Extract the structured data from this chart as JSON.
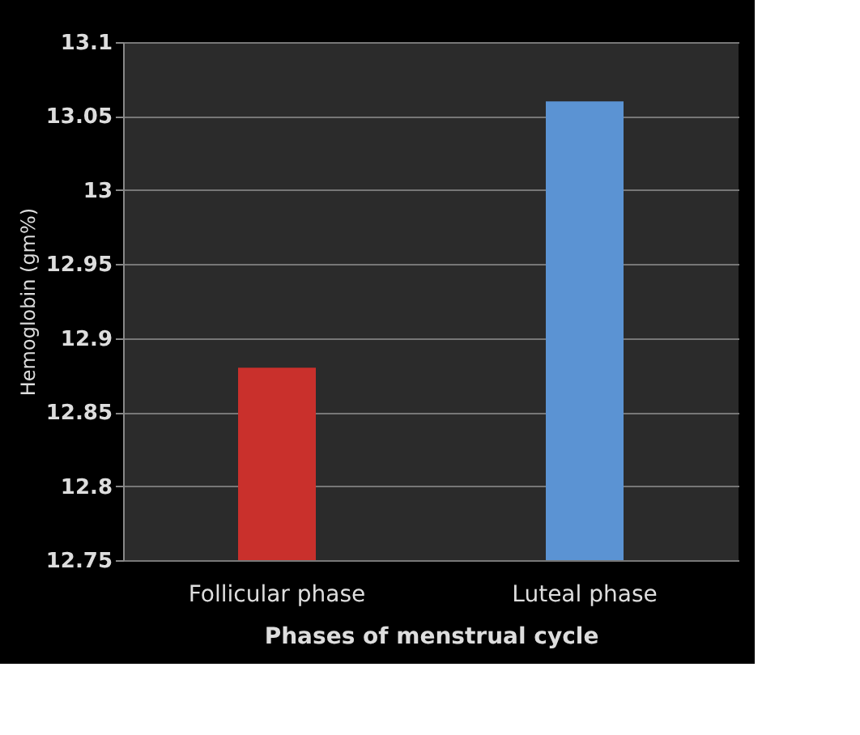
{
  "chart_data": {
    "type": "bar",
    "xlabel": "Phases of menstrual cycle",
    "ylabel": "Hemoglobin (gm%)",
    "categories": [
      "Follicular phase",
      "Luteal phase"
    ],
    "values": [
      12.88,
      13.06
    ],
    "colors": [
      "#c9302c",
      "#5b93d3"
    ],
    "ylim": [
      12.75,
      13.1
    ],
    "yticks": [
      12.75,
      12.8,
      12.85,
      12.9,
      12.95,
      13,
      13.05,
      13.1
    ],
    "grid": "y"
  }
}
